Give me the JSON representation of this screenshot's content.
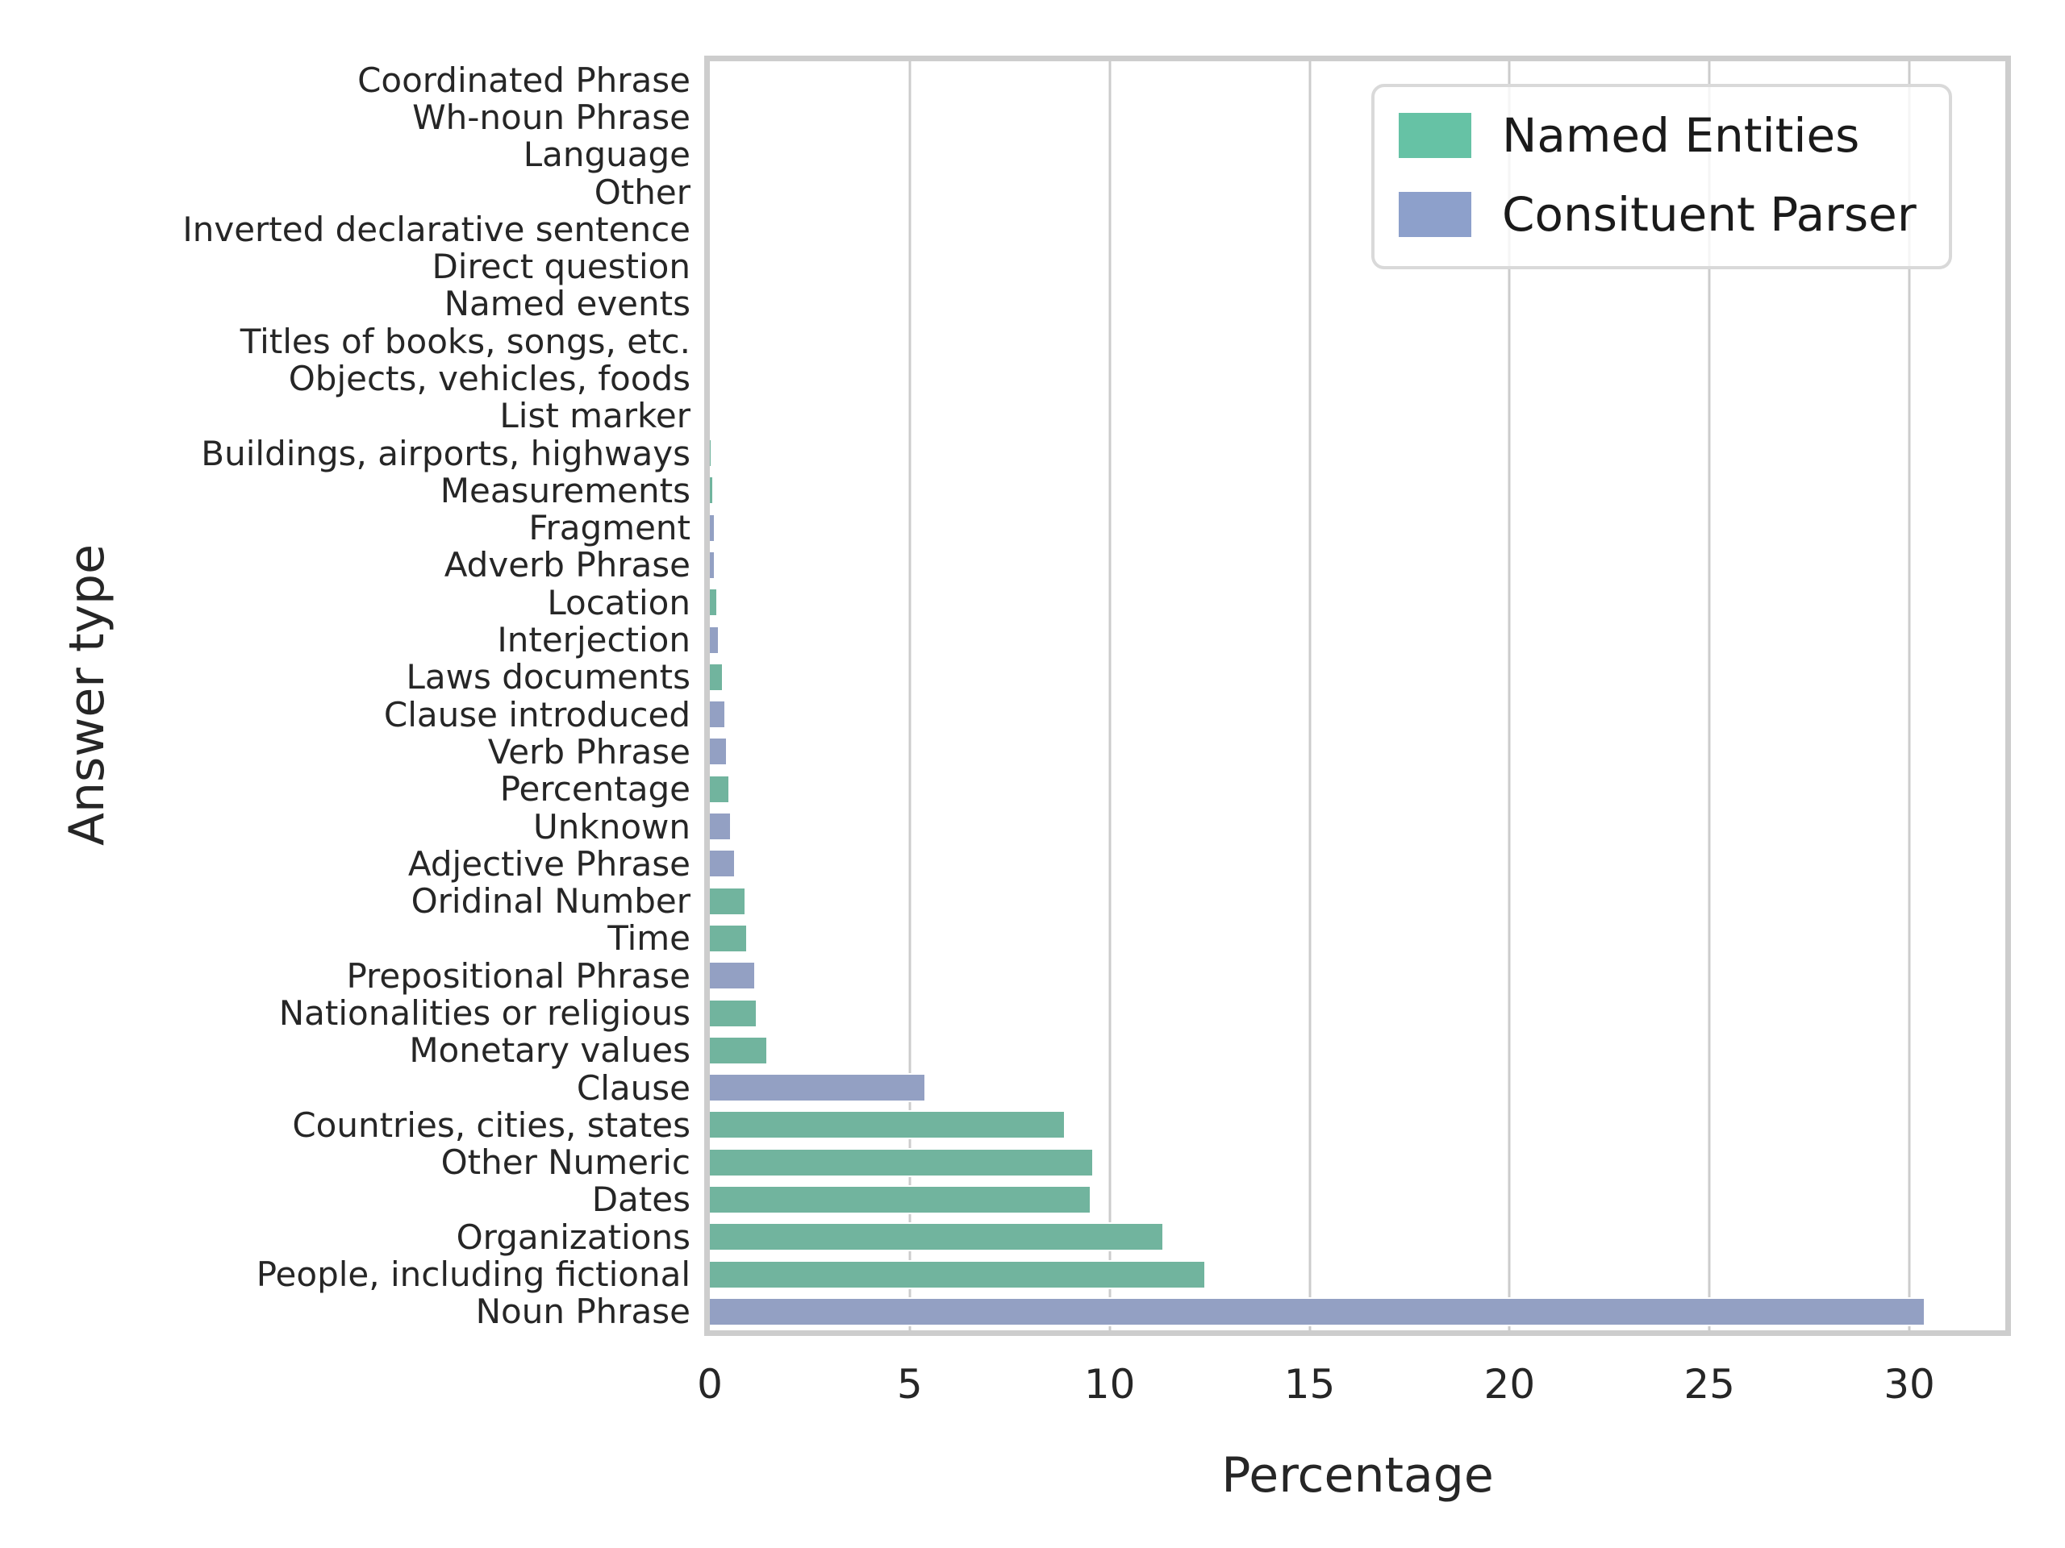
{
  "chart_data": {
    "type": "bar",
    "orientation": "horizontal",
    "title": "",
    "xlabel": "Percentage",
    "ylabel": "Answer type",
    "xlim": [
      0,
      32.4
    ],
    "xticks": [
      0,
      5,
      10,
      15,
      20,
      25,
      30
    ],
    "grid": true,
    "legend_position": "upper right",
    "series": [
      {
        "key": "ne",
        "name": "Named Entities",
        "legend_color": "#66c2a5",
        "bar_color": "#71b49e"
      },
      {
        "key": "cp",
        "name": "Consituent Parser",
        "legend_color": "#8da0cb",
        "bar_color": "#93a0c3"
      }
    ],
    "rows": [
      {
        "label": "Coordinated Phrase",
        "value": 0,
        "series": "cp"
      },
      {
        "label": "Wh-noun Phrase",
        "value": 0,
        "series": "cp"
      },
      {
        "label": "Language",
        "value": 0,
        "series": "ne"
      },
      {
        "label": "Other",
        "value": 0,
        "series": "ne"
      },
      {
        "label": "Inverted declarative sentence",
        "value": 0,
        "series": "cp"
      },
      {
        "label": "Direct question",
        "value": 0,
        "series": "cp"
      },
      {
        "label": "Named events",
        "value": 0,
        "series": "ne"
      },
      {
        "label": "Titles of books, songs, etc.",
        "value": 0,
        "series": "ne"
      },
      {
        "label": "Objects, vehicles, foods",
        "value": 0,
        "series": "ne"
      },
      {
        "label": "List marker",
        "value": 0.05,
        "series": "cp"
      },
      {
        "label": "Buildings, airports, highways",
        "value": 0.07,
        "series": "ne"
      },
      {
        "label": "Measurements",
        "value": 0.1,
        "series": "ne"
      },
      {
        "label": "Fragment",
        "value": 0.15,
        "series": "cp"
      },
      {
        "label": "Adverb Phrase",
        "value": 0.15,
        "series": "cp"
      },
      {
        "label": "Location",
        "value": 0.2,
        "series": "ne"
      },
      {
        "label": "Interjection",
        "value": 0.25,
        "series": "cp"
      },
      {
        "label": "Laws documents",
        "value": 0.35,
        "series": "ne"
      },
      {
        "label": "Clause introduced",
        "value": 0.4,
        "series": "cp"
      },
      {
        "label": "Verb Phrase",
        "value": 0.45,
        "series": "cp"
      },
      {
        "label": "Percentage",
        "value": 0.5,
        "series": "ne"
      },
      {
        "label": "Unknown",
        "value": 0.55,
        "series": "cp"
      },
      {
        "label": "Adjective Phrase",
        "value": 0.65,
        "series": "cp"
      },
      {
        "label": "Oridinal Number",
        "value": 0.9,
        "series": "ne"
      },
      {
        "label": "Time",
        "value": 0.95,
        "series": "ne"
      },
      {
        "label": "Prepositional Phrase",
        "value": 1.15,
        "series": "cp"
      },
      {
        "label": "Nationalities or religious",
        "value": 1.2,
        "series": "ne"
      },
      {
        "label": "Monetary values",
        "value": 1.45,
        "series": "ne"
      },
      {
        "label": "Clause",
        "value": 5.4,
        "series": "cp"
      },
      {
        "label": "Countries, cities, states",
        "value": 8.9,
        "series": "ne"
      },
      {
        "label": "Other Numeric",
        "value": 9.6,
        "series": "ne"
      },
      {
        "label": "Dates",
        "value": 9.55,
        "series": "ne"
      },
      {
        "label": "Organizations",
        "value": 11.35,
        "series": "ne"
      },
      {
        "label": "People, including fictional",
        "value": 12.4,
        "series": "ne"
      },
      {
        "label": "Noun Phrase",
        "value": 30.4,
        "series": "cp"
      }
    ]
  },
  "style": {
    "gridline_color": "#cccccc",
    "spine_color": "#cdcdcd",
    "tick_label_color": "#262626",
    "background": "#ffffff"
  }
}
